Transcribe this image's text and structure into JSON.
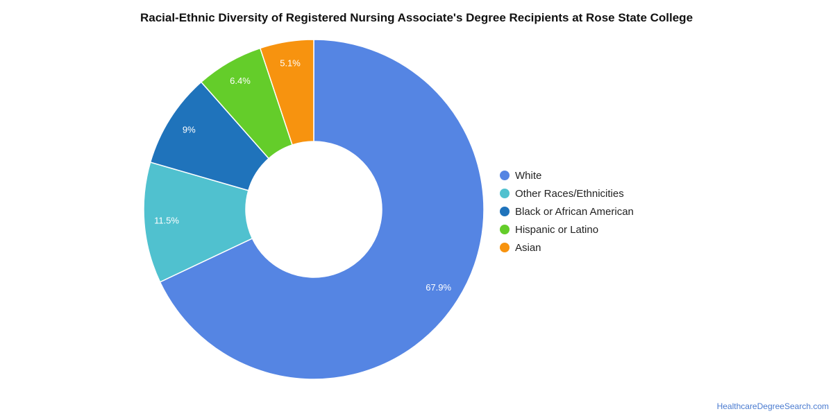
{
  "chart_data": {
    "type": "pie",
    "title": "Racial-Ethnic Diversity of Registered Nursing Associate's Degree Recipients at Rose State College",
    "categories": [
      "White",
      "Other Races/Ethnicities",
      "Black or African American",
      "Hispanic or Latino",
      "Asian"
    ],
    "values": [
      67.9,
      11.5,
      9.0,
      6.4,
      5.1
    ],
    "value_labels": [
      "67.9%",
      "11.5%",
      "9%",
      "6.4%",
      "5.1%"
    ],
    "colors": [
      "#5585e3",
      "#50c1cf",
      "#1f73bb",
      "#64cd2a",
      "#f7930f"
    ],
    "donut": true,
    "legend_position": "right"
  },
  "watermark": "HealthcareDegreeSearch.com"
}
